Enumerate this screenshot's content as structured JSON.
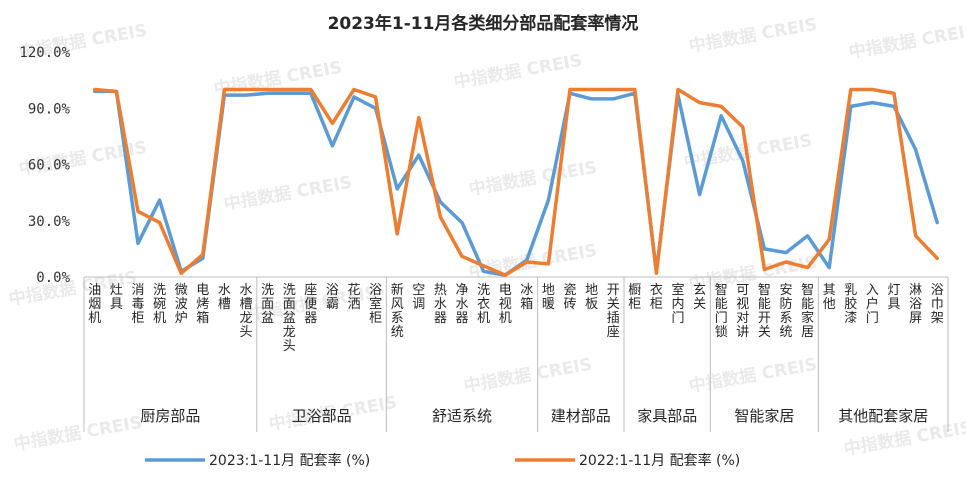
{
  "watermark": "中指数据 CREIS",
  "chart_data": {
    "type": "line",
    "title": "2023年1-11月各类细分部品配套率情况",
    "ylim": [
      0,
      120
    ],
    "yticks": [
      "0.0%",
      "30.0%",
      "60.0%",
      "90.0%",
      "120.0%"
    ],
    "ytick_values": [
      0,
      30,
      60,
      90,
      120
    ],
    "grid": false,
    "legend_position": "bottom",
    "categories": [
      "油烟机",
      "灶具",
      "消毒柜",
      "洗碗机",
      "微波炉",
      "电烤箱",
      "水槽",
      "水槽龙头",
      "洗面盆",
      "洗面盆龙头",
      "座便器",
      "浴霸",
      "花洒",
      "浴室柜",
      "新风系统",
      "空调",
      "热水器",
      "净水器",
      "洗衣机",
      "电视机",
      "冰箱",
      "地暖",
      "瓷砖",
      "地板",
      "开关插座",
      "橱柜",
      "衣柜",
      "室内门",
      "玄关",
      "智能门锁",
      "可视对讲",
      "智能开关",
      "安防系统",
      "智能家居",
      "其他",
      "乳胶漆",
      "入户门",
      "灯具",
      "淋浴屏",
      "浴巾架"
    ],
    "groups": [
      {
        "label": "厨房部品",
        "start": 0,
        "end": 7
      },
      {
        "label": "卫浴部品",
        "start": 8,
        "end": 13
      },
      {
        "label": "舒适系统",
        "start": 14,
        "end": 20
      },
      {
        "label": "建材部品",
        "start": 21,
        "end": 24
      },
      {
        "label": "家具部品",
        "start": 25,
        "end": 28
      },
      {
        "label": "智能家居",
        "start": 29,
        "end": 33
      },
      {
        "label": "其他配套家居",
        "start": 34,
        "end": 39
      }
    ],
    "series": [
      {
        "name": "2023:1-11月 配套率 (%)",
        "color": "#5b9bd5",
        "values": [
          99,
          99,
          18,
          41,
          3,
          10,
          97,
          97,
          98,
          98,
          98,
          70,
          96,
          90,
          47,
          65,
          40,
          29,
          3,
          1,
          9,
          41,
          98,
          95,
          95,
          98,
          3,
          97,
          44,
          86,
          62,
          15,
          13,
          22,
          5,
          91,
          93,
          91,
          68,
          29
        ]
      },
      {
        "name": "2022:1-11月 配套率 (%)",
        "color": "#ed7d31",
        "values": [
          100,
          99,
          35,
          29,
          2,
          12,
          100,
          100,
          100,
          100,
          100,
          82,
          100,
          96,
          23,
          85,
          32,
          11,
          6,
          1,
          8,
          7,
          100,
          100,
          100,
          100,
          2,
          100,
          93,
          91,
          80,
          4,
          8,
          5,
          20,
          100,
          100,
          98,
          22,
          10
        ]
      }
    ]
  }
}
